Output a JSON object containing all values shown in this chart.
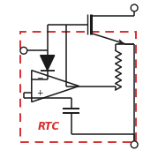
{
  "bg_color": "#ffffff",
  "line_color": "#1a1a1a",
  "red_color": "#d43030",
  "rtc_text": "RTC",
  "lw": 1.1,
  "fig_w": 1.79,
  "fig_h": 1.79,
  "dpi": 100,
  "xlim": [
    0,
    10
  ],
  "ylim": [
    0,
    10
  ]
}
